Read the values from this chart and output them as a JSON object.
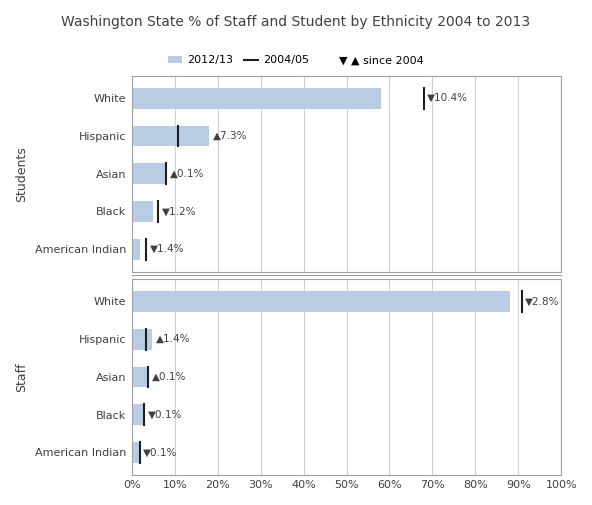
{
  "title": "Washington State % of Staff and Student by Ethnicity 2004 to 2013",
  "bar_color": "#b8cce4",
  "line_color": "#1f1f1f",
  "text_color": "#404040",
  "background_color": "#ffffff",
  "students": {
    "categories": [
      "White",
      "Hispanic",
      "Asian",
      "Black",
      "American Indian"
    ],
    "bar_2013": [
      0.58,
      0.18,
      0.08,
      0.05,
      0.02
    ],
    "line_2004": [
      0.68,
      0.108,
      0.079,
      0.062,
      0.034
    ],
    "changes": [
      "▼10.4%",
      "▲7.3%",
      "▲0.1%",
      "▼1.2%",
      "▼1.4%"
    ]
  },
  "staff": {
    "categories": [
      "White",
      "Hispanic",
      "Asian",
      "Black",
      "American Indian"
    ],
    "bar_2013": [
      0.88,
      0.047,
      0.038,
      0.028,
      0.018
    ],
    "line_2004": [
      0.908,
      0.033,
      0.037,
      0.029,
      0.019
    ],
    "changes": [
      "▼2.8%",
      "▲1.4%",
      "▲0.1%",
      "▼0.1%",
      "▼0.1%"
    ]
  },
  "xlim": [
    0,
    1.0
  ],
  "xticks": [
    0.0,
    0.1,
    0.2,
    0.3,
    0.4,
    0.5,
    0.6,
    0.7,
    0.8,
    0.9,
    1.0
  ],
  "xtick_labels": [
    "0%",
    "10%",
    "20%",
    "30%",
    "40%",
    "50%",
    "60%",
    "70%",
    "80%",
    "90%",
    "100%"
  ],
  "bar_height": 0.55,
  "section_divider_color": "#a0a0a0",
  "grid_color": "#d0d0d0",
  "legend_labels": [
    "2012/13",
    "2004/05",
    "▼ ▲ since 2004"
  ]
}
